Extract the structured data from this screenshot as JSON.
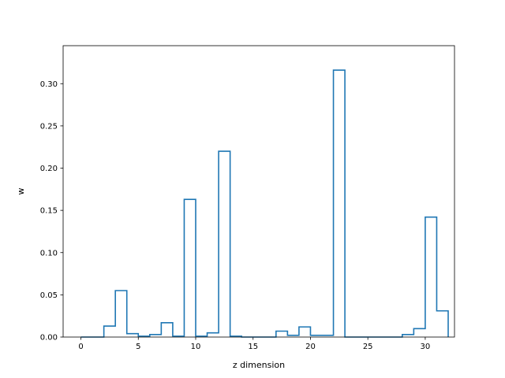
{
  "chart_data": {
    "type": "bar",
    "style": "step-histogram",
    "title": "",
    "xlabel": "z dimension",
    "ylabel": "w",
    "xlim": [
      -1.55,
      32.55
    ],
    "ylim": [
      0,
      0.345
    ],
    "x_ticks": [
      0,
      5,
      10,
      15,
      20,
      25,
      30
    ],
    "y_ticks": [
      0.0,
      0.05,
      0.1,
      0.15,
      0.2,
      0.25,
      0.3
    ],
    "bin_edges_start": 0,
    "bin_width": 1,
    "values": [
      0.0,
      0.0,
      0.013,
      0.055,
      0.004,
      0.001,
      0.003,
      0.017,
      0.001,
      0.163,
      0.001,
      0.005,
      0.22,
      0.001,
      0.0,
      0.0,
      0.0,
      0.007,
      0.002,
      0.012,
      0.002,
      0.002,
      0.316,
      0.0,
      0.0,
      0.0,
      0.0,
      0.0,
      0.003,
      0.01,
      0.142,
      0.031
    ],
    "grid": false,
    "line_color": "#1f77b4"
  }
}
